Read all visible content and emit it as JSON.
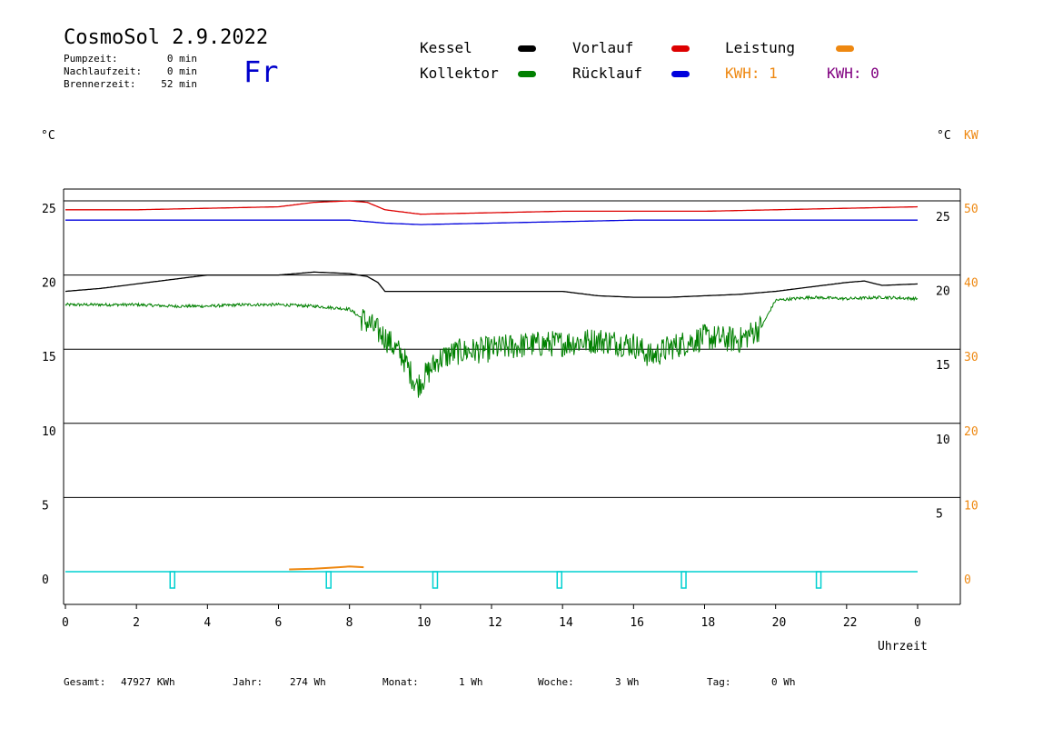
{
  "header": {
    "title": "CosmoSol 2.9.2022",
    "day": "Fr",
    "stats": [
      {
        "label": "Pumpzeit:",
        "value": "0 min"
      },
      {
        "label": "Nachlaufzeit:",
        "value": "0 min"
      },
      {
        "label": "Brennerzeit:",
        "value": "52 min"
      }
    ]
  },
  "legend": {
    "kessel": {
      "label": "Kessel",
      "color": "#000000"
    },
    "vorlauf": {
      "label": "Vorlauf",
      "color": "#dd0000"
    },
    "leistung": {
      "label": "Leistung",
      "color": "#ee8811"
    },
    "kollektor": {
      "label": "Kollektor",
      "color": "#008000"
    },
    "ruecklauf": {
      "label": "Rücklauf",
      "color": "#0000dd"
    },
    "kwh1": {
      "label": "KWH: 1",
      "color": "#ee8811"
    },
    "kwh2": {
      "label": "KWH: 0",
      "color": "#800080"
    }
  },
  "footer": [
    {
      "label": "Gesamt:",
      "value": "47927 KWh"
    },
    {
      "label": "Jahr:",
      "value": "274 Wh"
    },
    {
      "label": "Monat:",
      "value": "1 Wh"
    },
    {
      "label": "Woche:",
      "value": "3 Wh"
    },
    {
      "label": "Tag:",
      "value": "0 Wh"
    }
  ],
  "chart_data": {
    "type": "line",
    "xlabel": "Uhrzeit",
    "ylabel_left": "°C",
    "ylabel_right": "°C",
    "ylabel_right2": "KW",
    "x_ticks": [
      "0",
      "2",
      "4",
      "6",
      "8",
      "10",
      "12",
      "14",
      "16",
      "18",
      "20",
      "22",
      "0"
    ],
    "xlim": [
      0,
      24
    ],
    "ylim": [
      -2,
      26
    ],
    "y_ticks_left": [
      0,
      5,
      10,
      15,
      20,
      25
    ],
    "y_ticks_right": [
      5,
      10,
      15,
      20,
      25
    ],
    "y_ticks_kw": [
      0,
      10,
      20,
      30,
      40,
      50
    ],
    "grid": true,
    "series": [
      {
        "name": "Vorlauf",
        "color": "#dd0000",
        "x": [
          0,
          2,
          4,
          6,
          7,
          8,
          8.5,
          9,
          10,
          12,
          14,
          16,
          18,
          20,
          22,
          24
        ],
        "y": [
          24.4,
          24.4,
          24.5,
          24.6,
          24.9,
          25.0,
          24.9,
          24.4,
          24.1,
          24.2,
          24.3,
          24.3,
          24.3,
          24.4,
          24.5,
          24.6
        ]
      },
      {
        "name": "Rücklauf",
        "color": "#0000dd",
        "x": [
          0,
          4,
          8,
          8.5,
          9,
          10,
          12,
          14,
          16,
          18,
          20,
          24
        ],
        "y": [
          23.7,
          23.7,
          23.7,
          23.6,
          23.5,
          23.4,
          23.5,
          23.6,
          23.7,
          23.7,
          23.7,
          23.7
        ]
      },
      {
        "name": "Kessel",
        "color": "#000000",
        "x": [
          0,
          1,
          2,
          3,
          4,
          5,
          6,
          7,
          8,
          8.5,
          8.8,
          9.0,
          9.3,
          10,
          12,
          14,
          15,
          16,
          17,
          18,
          19,
          20,
          21,
          22,
          22.5,
          23,
          24
        ],
        "y": [
          18.9,
          19.1,
          19.4,
          19.7,
          20.0,
          20.0,
          20.0,
          20.2,
          20.1,
          19.9,
          19.5,
          18.9,
          18.9,
          18.9,
          18.9,
          18.9,
          18.6,
          18.5,
          18.5,
          18.6,
          18.7,
          18.9,
          19.2,
          19.5,
          19.6,
          19.3,
          19.4
        ]
      },
      {
        "name": "Kollektor",
        "color": "#008000",
        "x": [
          0,
          2,
          3,
          4,
          5,
          6,
          7,
          8,
          8.5,
          9,
          9.5,
          9.9,
          10.5,
          11,
          12,
          13,
          14,
          15,
          16,
          16.5,
          17,
          18,
          19,
          19.6,
          20,
          21,
          22,
          23,
          24
        ],
        "y": [
          18.0,
          18.0,
          17.9,
          17.9,
          18.0,
          18.0,
          17.9,
          17.7,
          16.8,
          15.8,
          14.5,
          12.5,
          14.3,
          14.8,
          15.0,
          15.3,
          15.4,
          15.6,
          15.3,
          14.5,
          15.1,
          15.8,
          15.6,
          16.5,
          18.3,
          18.5,
          18.4,
          18.5,
          18.4
        ]
      }
    ],
    "leistung": {
      "name": "Leistung",
      "color": "#ee8811",
      "x": [
        6.3,
        7.0,
        7.7,
        8.0,
        8.4
      ],
      "y": [
        0.15,
        0.2,
        0.3,
        0.35,
        0.3
      ]
    },
    "pump_pulses": {
      "color": "#00d0d0",
      "x": [
        3.0,
        7.4,
        10.4,
        13.9,
        17.4,
        21.2
      ]
    },
    "lines_start": 0,
    "lines_end": 24
  }
}
